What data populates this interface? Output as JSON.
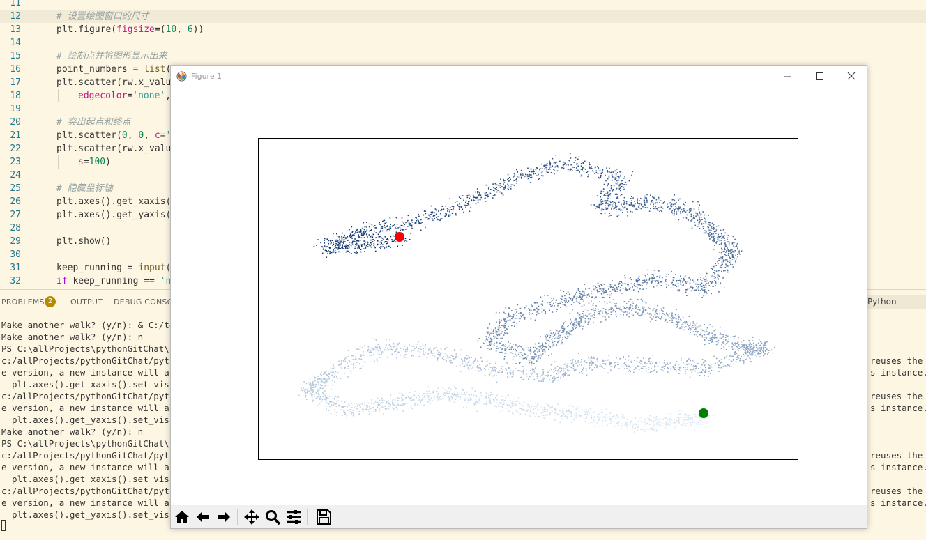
{
  "editor": {
    "lines": [
      {
        "n": "11",
        "code": ""
      },
      {
        "n": "12",
        "code": "# 设置绘图窗口的尺寸",
        "current": true
      },
      {
        "n": "13",
        "code": "plt.figure(figsize=(10, 6))"
      },
      {
        "n": "14",
        "code": ""
      },
      {
        "n": "15",
        "code": "# 绘制点并将图形显示出来"
      },
      {
        "n": "16",
        "code": "point_numbers = list("
      },
      {
        "n": "17",
        "code": "plt.scatter(rw.x_valu"
      },
      {
        "n": "18",
        "code": "edgecolor='none',",
        "indent": true
      },
      {
        "n": "19",
        "code": ""
      },
      {
        "n": "20",
        "code": "# 突出起点和终点"
      },
      {
        "n": "21",
        "code": "plt.scatter(0, 0, c='"
      },
      {
        "n": "22",
        "code": "plt.scatter(rw.x_valu"
      },
      {
        "n": "23",
        "code": "s=100)",
        "indent": true
      },
      {
        "n": "24",
        "code": ""
      },
      {
        "n": "25",
        "code": "# 隐藏坐标轴"
      },
      {
        "n": "26",
        "code": "plt.axes().get_xaxis("
      },
      {
        "n": "27",
        "code": "plt.axes().get_yaxis("
      },
      {
        "n": "28",
        "code": ""
      },
      {
        "n": "29",
        "code": "plt.show()"
      },
      {
        "n": "30",
        "code": ""
      },
      {
        "n": "31",
        "code": "keep_running = input("
      },
      {
        "n": "32",
        "code": "if keep_running == 'n"
      }
    ]
  },
  "panel": {
    "tabs": [
      "PROBLEMS",
      "OUTPUT",
      "DEBUG CONSOLE"
    ],
    "problems_count": "2",
    "language": "Python",
    "terminal_left": [
      "Make another walk? (y/n): & C:/tool",
      "Make another walk? (y/n): n",
      "PS C:\\allProjects\\pythonGitChat\\pyt",
      "c:/allProjects/pythonGitChat/python",
      "e version, a new instance will alwa",
      "  plt.axes().get_xaxis().set_visibl",
      "c:/allProjects/pythonGitChat/python",
      "e version, a new instance will alwa",
      "  plt.axes().get_yaxis().set_visibl",
      "Make another walk? (y/n): n",
      "PS C:\\allProjects\\pythonGitChat\\pyt",
      "c:/allProjects/pythonGitChat/python",
      "e version, a new instance will alwa",
      "  plt.axes().get_xaxis().set_visibl",
      "c:/allProjects/pythonGitChat/python",
      "e version, a new instance will alwa",
      "  plt.axes().get_yaxis().set_visibl"
    ],
    "terminal_right": [
      {
        "row": 3,
        "text": "reuses the e"
      },
      {
        "row": 4,
        "text": "s instance."
      },
      {
        "row": 6,
        "text": "reuses the e"
      },
      {
        "row": 7,
        "text": "s instance."
      },
      {
        "row": 11,
        "text": "reuses the e"
      },
      {
        "row": 12,
        "text": "s instance."
      },
      {
        "row": 14,
        "text": "reuses the e"
      },
      {
        "row": 15,
        "text": "s instance."
      }
    ]
  },
  "figure": {
    "title": "Figure 1",
    "toolbar": [
      "home-icon",
      "back-icon",
      "forward-icon",
      "pan-icon",
      "zoom-icon",
      "configure-subplots-icon",
      "save-icon"
    ]
  },
  "chart_data": {
    "type": "scatter",
    "title": "",
    "xlabel": "",
    "ylabel": "",
    "axes_visible": false,
    "colormap": "Blues",
    "start_point": {
      "color": "#ff0000"
    },
    "end_point": {
      "color": "#008000"
    },
    "grid": false
  }
}
